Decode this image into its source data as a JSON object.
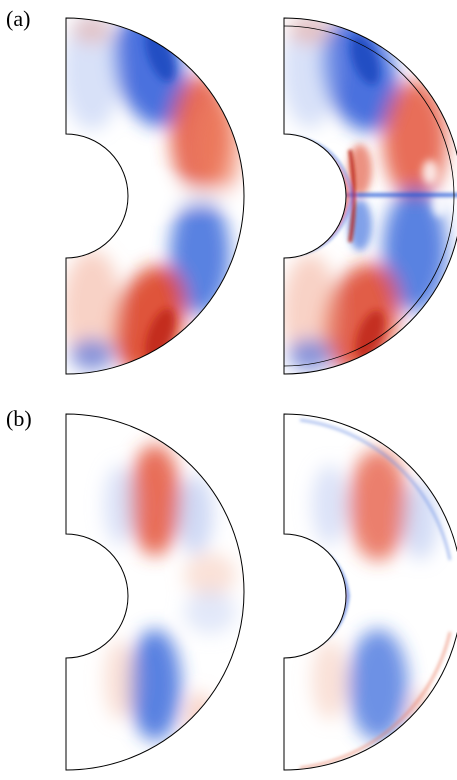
{
  "panels": [
    {
      "label": "(a)",
      "plots": [
        "left",
        "right"
      ]
    },
    {
      "label": "(b)",
      "plots": [
        "left",
        "right"
      ]
    }
  ],
  "colors": {
    "positive": "#d9361a",
    "negative": "#1f55d6",
    "outline": "#000000",
    "background": "#ffffff"
  }
}
